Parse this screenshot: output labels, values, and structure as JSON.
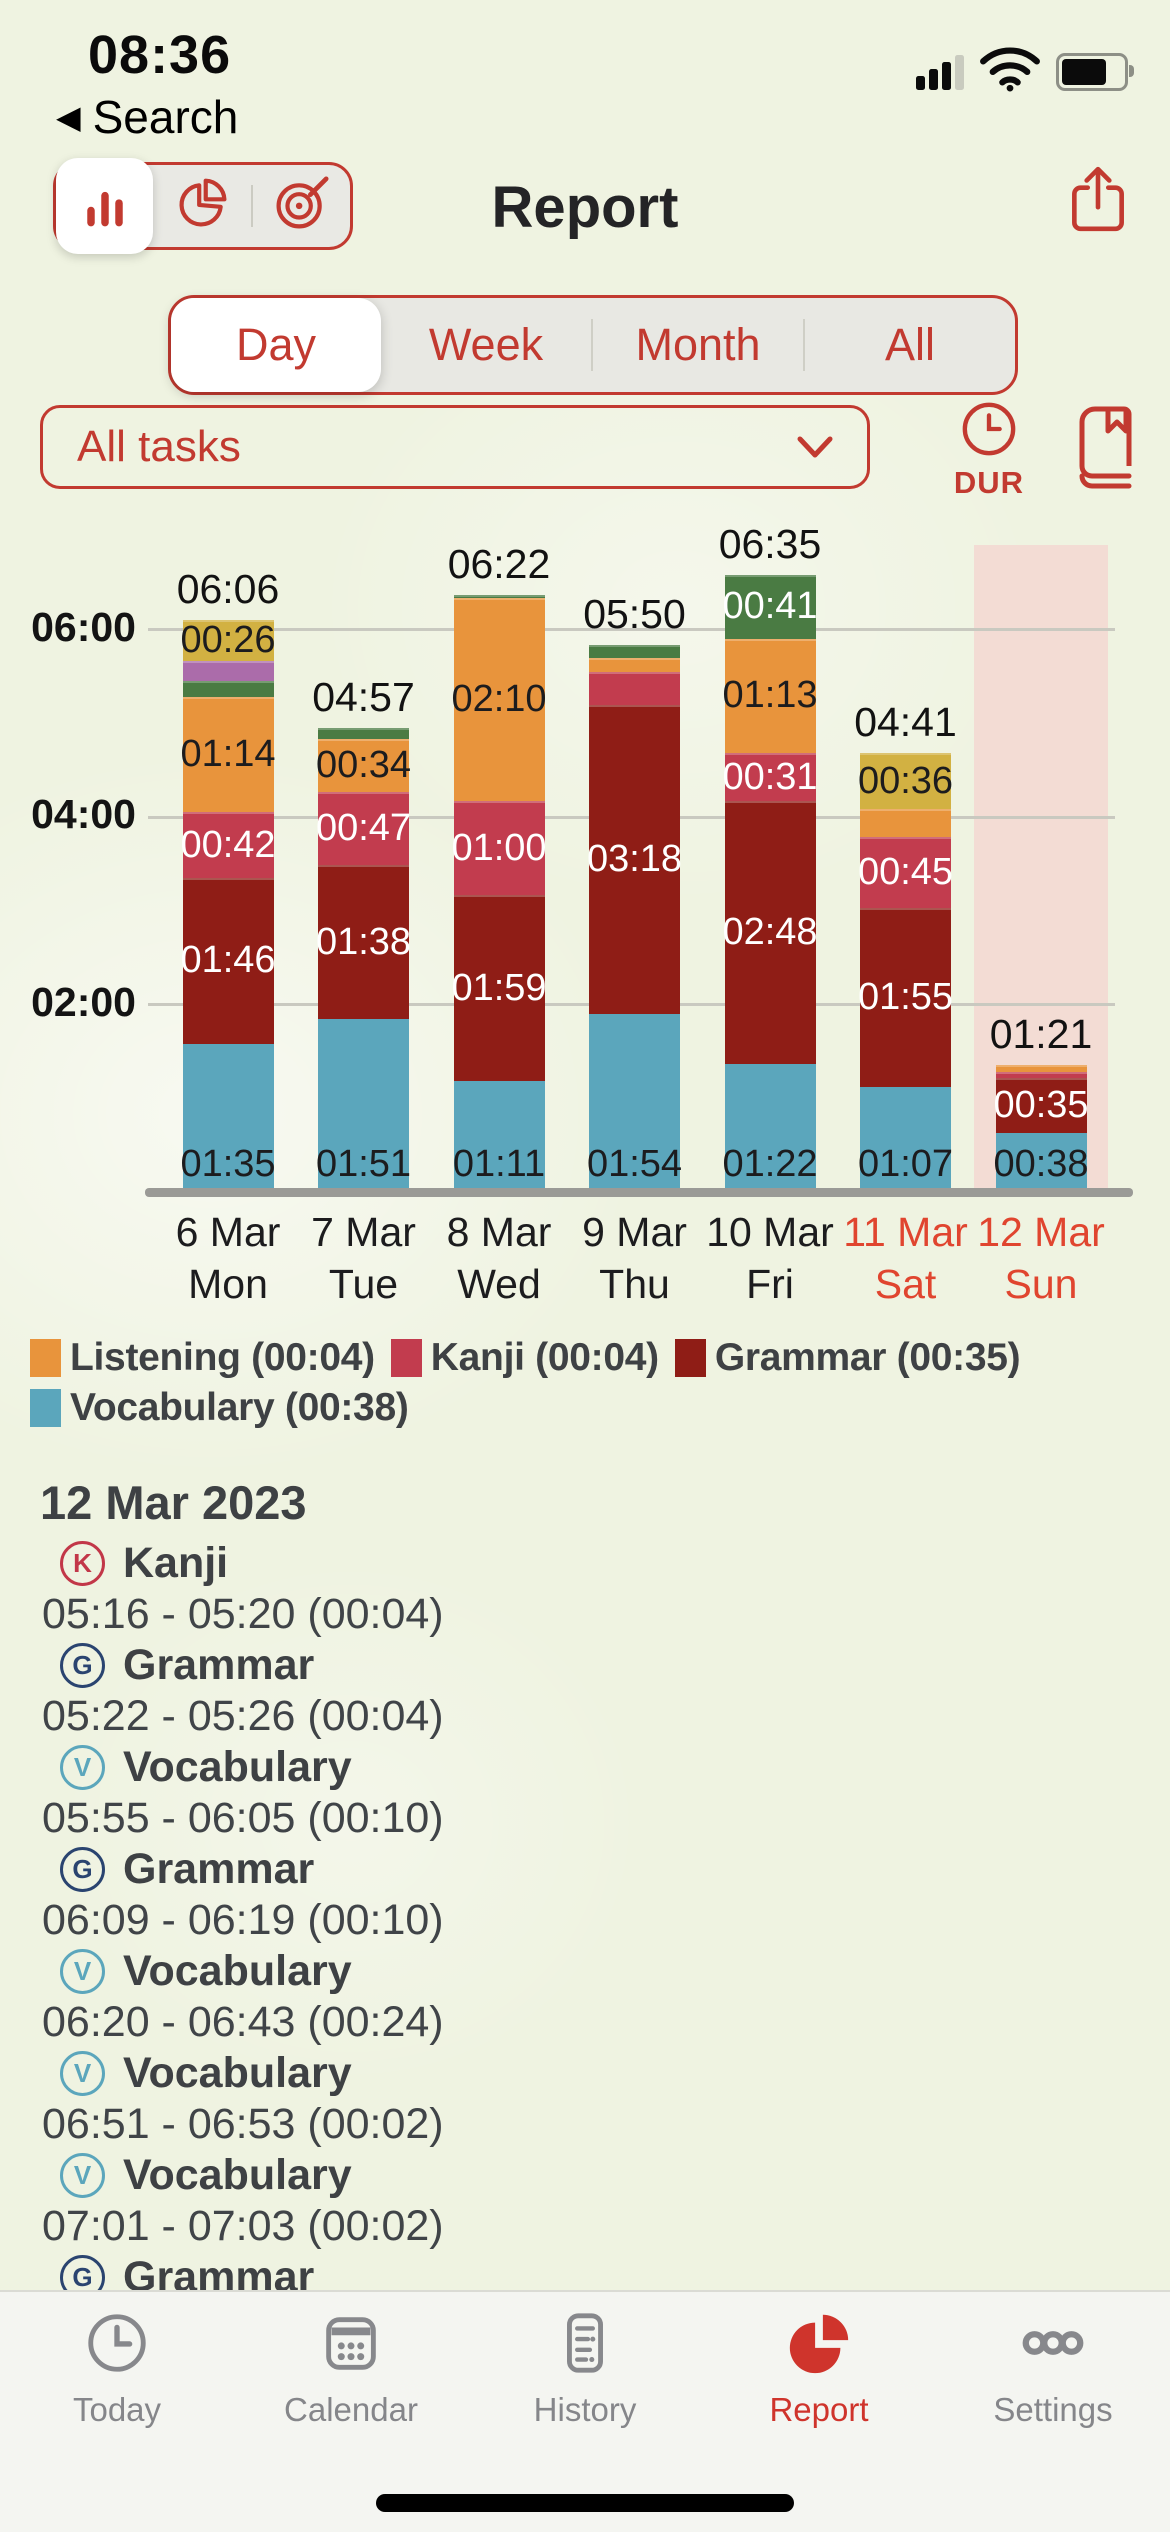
{
  "status_bar": {
    "time": "08:36"
  },
  "nav": {
    "back_label": "Search",
    "title": "Report"
  },
  "chart_type_switcher": {
    "options": [
      "bar-chart-icon",
      "pie-chart-icon",
      "target-icon"
    ],
    "selected_index": 0
  },
  "range_tabs": {
    "options": [
      "Day",
      "Week",
      "Month",
      "All"
    ],
    "selected": "Day"
  },
  "filter": {
    "selected": "All tasks"
  },
  "duration_button": {
    "label": "DUR"
  },
  "chart_data": {
    "type": "bar",
    "subtype": "stacked",
    "ylabel": "duration (hh:mm)",
    "y_ticks": [
      {
        "label": "06:00",
        "minutes": 360
      },
      {
        "label": "04:00",
        "minutes": 240
      },
      {
        "label": "02:00",
        "minutes": 120
      }
    ],
    "series_colors": {
      "vocabulary": "#5ba6bc",
      "grammar": "#8f1d16",
      "kanji": "#c23c4e",
      "listening": "#e8943c",
      "green": "#4a7b43",
      "purple": "#ab6caa",
      "gold": "#d2b142"
    },
    "selected_index": 6,
    "bars": [
      {
        "date": "6 Mar",
        "dow": "Mon",
        "weekend": false,
        "total": "06:06",
        "segments": [
          {
            "series": "vocabulary",
            "minutes": 95,
            "label": "01:35"
          },
          {
            "series": "grammar",
            "minutes": 106,
            "label": "01:46"
          },
          {
            "series": "kanji",
            "minutes": 42,
            "label": "00:42"
          },
          {
            "series": "listening",
            "minutes": 74,
            "label": "01:14"
          },
          {
            "series": "green",
            "minutes": 10
          },
          {
            "series": "purple",
            "minutes": 13
          },
          {
            "series": "gold",
            "minutes": 26,
            "label": "00:26"
          }
        ]
      },
      {
        "date": "7 Mar",
        "dow": "Tue",
        "weekend": false,
        "total": "04:57",
        "segments": [
          {
            "series": "vocabulary",
            "minutes": 111,
            "label": "01:51"
          },
          {
            "series": "grammar",
            "minutes": 98,
            "label": "01:38"
          },
          {
            "series": "kanji",
            "minutes": 47,
            "label": "00:47"
          },
          {
            "series": "listening",
            "minutes": 34,
            "label": "00:34"
          },
          {
            "series": "green",
            "minutes": 7
          }
        ]
      },
      {
        "date": "8 Mar",
        "dow": "Wed",
        "weekend": false,
        "total": "06:22",
        "segments": [
          {
            "series": "vocabulary",
            "minutes": 71,
            "label": "01:11"
          },
          {
            "series": "grammar",
            "minutes": 119,
            "label": "01:59"
          },
          {
            "series": "kanji",
            "minutes": 60,
            "label": "01:00"
          },
          {
            "series": "listening",
            "minutes": 130,
            "label": "02:10"
          },
          {
            "series": "green",
            "minutes": 2
          }
        ]
      },
      {
        "date": "9 Mar",
        "dow": "Thu",
        "weekend": false,
        "total": "05:50",
        "segments": [
          {
            "series": "vocabulary",
            "minutes": 114,
            "label": "01:54"
          },
          {
            "series": "grammar",
            "minutes": 198,
            "label": "03:18"
          },
          {
            "series": "kanji",
            "minutes": 21
          },
          {
            "series": "listening",
            "minutes": 9
          },
          {
            "series": "green",
            "minutes": 8
          }
        ]
      },
      {
        "date": "10 Mar",
        "dow": "Fri",
        "weekend": false,
        "total": "06:35",
        "segments": [
          {
            "series": "vocabulary",
            "minutes": 82,
            "label": "01:22"
          },
          {
            "series": "grammar",
            "minutes": 168,
            "label": "02:48"
          },
          {
            "series": "kanji",
            "minutes": 31,
            "label": "00:31"
          },
          {
            "series": "listening",
            "minutes": 73,
            "label": "01:13"
          },
          {
            "series": "green",
            "minutes": 41,
            "label": "00:41"
          }
        ]
      },
      {
        "date": "11 Mar",
        "dow": "Sat",
        "weekend": true,
        "total": "04:41",
        "segments": [
          {
            "series": "vocabulary",
            "minutes": 67,
            "label": "01:07"
          },
          {
            "series": "grammar",
            "minutes": 115,
            "label": "01:55"
          },
          {
            "series": "kanji",
            "minutes": 45,
            "label": "00:45"
          },
          {
            "series": "listening",
            "minutes": 18
          },
          {
            "series": "gold",
            "minutes": 36,
            "label": "00:36"
          }
        ]
      },
      {
        "date": "12 Mar",
        "dow": "Sun",
        "weekend": true,
        "total": "01:21",
        "segments": [
          {
            "series": "vocabulary",
            "minutes": 38,
            "label": "00:38"
          },
          {
            "series": "grammar",
            "minutes": 35,
            "label": "00:35"
          },
          {
            "series": "kanji",
            "minutes": 4
          },
          {
            "series": "listening",
            "minutes": 4
          }
        ]
      }
    ],
    "weekend_label_color": "#e0452f",
    "weekday_label_color": "#1c1c1e"
  },
  "legend": {
    "items": [
      {
        "name": "Listening",
        "duration": "00:04",
        "series": "listening"
      },
      {
        "name": "Kanji",
        "duration": "00:04",
        "series": "kanji"
      },
      {
        "name": "Grammar",
        "duration": "00:35",
        "series": "grammar"
      },
      {
        "name": "Vocabulary",
        "duration": "00:38",
        "series": "vocabulary"
      }
    ]
  },
  "detail": {
    "date_header": "12 Mar 2023",
    "icon_colors": {
      "K": "#c23748",
      "G": "#2a4470",
      "V": "#5ba6bc"
    },
    "entries": [
      {
        "initial": "K",
        "task": "Kanji",
        "time": "05:16 - 05:20 (00:04)"
      },
      {
        "initial": "G",
        "task": "Grammar",
        "time": "05:22 - 05:26 (00:04)"
      },
      {
        "initial": "V",
        "task": "Vocabulary",
        "time": "05:55 - 06:05 (00:10)"
      },
      {
        "initial": "G",
        "task": "Grammar",
        "time": "06:09 - 06:19 (00:10)"
      },
      {
        "initial": "V",
        "task": "Vocabulary",
        "time": "06:20 - 06:43 (00:24)"
      },
      {
        "initial": "V",
        "task": "Vocabulary",
        "time": "06:51 - 06:53 (00:02)"
      },
      {
        "initial": "V",
        "task": "Vocabulary",
        "time": "07:01 - 07:03 (00:02)"
      },
      {
        "initial": "G",
        "task": "Grammar",
        "time": null
      }
    ]
  },
  "tab_bar": {
    "items": [
      {
        "label": "Today",
        "icon": "clock-icon"
      },
      {
        "label": "Calendar",
        "icon": "calendar-icon"
      },
      {
        "label": "History",
        "icon": "history-icon"
      },
      {
        "label": "Report",
        "icon": "report-pie-icon"
      },
      {
        "label": "Settings",
        "icon": "ellipsis-icon"
      }
    ],
    "selected": "Report",
    "accent_color": "#cf342c"
  }
}
